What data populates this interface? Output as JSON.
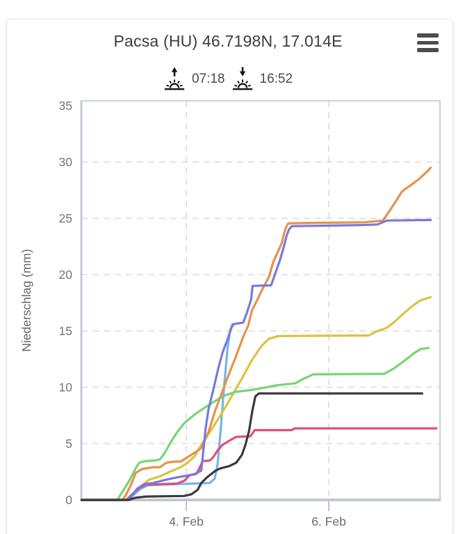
{
  "header": {
    "title": "Pacsa (HU) 46.7198N, 17.014E",
    "menu_icon": "hamburger-icon"
  },
  "sun": {
    "sunrise_icon": "sunrise-icon",
    "sunrise_time": "07:18",
    "sunset_icon": "sunset-icon",
    "sunset_time": "16:52"
  },
  "colors": {
    "title_text": "#3c3c3c",
    "sun_text": "#4a4a4a",
    "menu_icon": "#4c4c4c",
    "grid": "#dbdbdb",
    "axis_border": "#d0d4dd",
    "axis_main": "#c3c8d4",
    "tick_mark": "#b9c4da",
    "tick_text": "#757575",
    "x_label_text": "#6d6d6d",
    "axis_title_text": "#666666"
  },
  "chart_data": {
    "type": "line",
    "title": "Pacsa (HU) 46.7198N, 17.014E",
    "xlabel": "",
    "ylabel": "Niederschlag (mm)",
    "ylim": [
      0,
      35
    ],
    "x_range_feb_days": [
      2.53,
      7.56
    ],
    "y_ticks": [
      0,
      5,
      10,
      15,
      20,
      25,
      30,
      35
    ],
    "y_gridlines": [
      5,
      10,
      15,
      20,
      25,
      30
    ],
    "x_ticks": [
      {
        "t": 4,
        "label": "4. Feb"
      },
      {
        "t": 6,
        "label": "6. Feb"
      }
    ],
    "grid": "dashed",
    "legend_position": "none",
    "series": [
      {
        "name": "model-lightblue",
        "color": "#74b5e8",
        "points": [
          [
            2.53,
            0
          ],
          [
            3.19,
            0
          ],
          [
            3.27,
            0.5
          ],
          [
            3.36,
            1.0
          ],
          [
            3.46,
            1.3
          ],
          [
            3.63,
            1.35
          ],
          [
            4.33,
            1.5
          ],
          [
            4.4,
            1.9
          ],
          [
            4.44,
            3.2
          ],
          [
            4.48,
            6.0
          ],
          [
            4.53,
            10.0
          ],
          [
            4.58,
            13.5
          ],
          [
            4.62,
            15.2
          ],
          [
            4.67,
            15.6
          ]
        ]
      },
      {
        "name": "model-yellow",
        "color": "#dcc23f",
        "points": [
          [
            2.53,
            0
          ],
          [
            3.16,
            0
          ],
          [
            3.24,
            0.5
          ],
          [
            3.34,
            1.1
          ],
          [
            3.48,
            1.8
          ],
          [
            3.63,
            2.1
          ],
          [
            3.77,
            2.5
          ],
          [
            3.92,
            2.9
          ],
          [
            4.02,
            3.3
          ],
          [
            4.12,
            3.9
          ],
          [
            4.22,
            5.0
          ],
          [
            4.36,
            6.3
          ],
          [
            4.48,
            7.5
          ],
          [
            4.6,
            8.8
          ],
          [
            4.7,
            9.9
          ],
          [
            4.8,
            11.0
          ],
          [
            4.92,
            12.4
          ],
          [
            5.06,
            13.7
          ],
          [
            5.16,
            14.3
          ],
          [
            5.29,
            14.55
          ],
          [
            6.56,
            14.6
          ],
          [
            6.65,
            14.9
          ],
          [
            6.82,
            15.3
          ],
          [
            6.92,
            15.8
          ],
          [
            7.04,
            16.5
          ],
          [
            7.17,
            17.2
          ],
          [
            7.28,
            17.7
          ],
          [
            7.43,
            18.0
          ]
        ]
      },
      {
        "name": "model-green",
        "color": "#77d474",
        "points": [
          [
            2.53,
            0
          ],
          [
            3.03,
            0
          ],
          [
            3.1,
            0.7
          ],
          [
            3.19,
            1.6
          ],
          [
            3.29,
            2.8
          ],
          [
            3.34,
            3.3
          ],
          [
            3.43,
            3.45
          ],
          [
            3.56,
            3.5
          ],
          [
            3.63,
            3.6
          ],
          [
            3.7,
            4.2
          ],
          [
            3.77,
            5.0
          ],
          [
            3.87,
            6.0
          ],
          [
            3.97,
            6.8
          ],
          [
            4.12,
            7.6
          ],
          [
            4.26,
            8.2
          ],
          [
            4.41,
            8.8
          ],
          [
            4.55,
            9.3
          ],
          [
            4.7,
            9.6
          ],
          [
            4.9,
            9.75
          ],
          [
            5.04,
            9.9
          ],
          [
            5.29,
            10.2
          ],
          [
            5.53,
            10.35
          ],
          [
            5.66,
            10.8
          ],
          [
            5.78,
            11.15
          ],
          [
            6.78,
            11.2
          ],
          [
            6.92,
            11.7
          ],
          [
            7.07,
            12.4
          ],
          [
            7.19,
            13.0
          ],
          [
            7.29,
            13.4
          ],
          [
            7.4,
            13.5
          ]
        ]
      },
      {
        "name": "model-orange",
        "color": "#e5924a",
        "points": [
          [
            2.53,
            0
          ],
          [
            3.1,
            0
          ],
          [
            3.14,
            0.3
          ],
          [
            3.22,
            1.3
          ],
          [
            3.29,
            2.4
          ],
          [
            3.38,
            2.75
          ],
          [
            3.53,
            2.9
          ],
          [
            3.63,
            2.9
          ],
          [
            3.72,
            3.3
          ],
          [
            3.82,
            3.4
          ],
          [
            3.92,
            3.4
          ],
          [
            4.02,
            3.8
          ],
          [
            4.12,
            4.2
          ],
          [
            4.21,
            4.6
          ],
          [
            4.31,
            6.0
          ],
          [
            4.41,
            8.0
          ],
          [
            4.51,
            9.7
          ],
          [
            4.6,
            11.2
          ],
          [
            4.7,
            12.8
          ],
          [
            4.8,
            14.5
          ],
          [
            4.87,
            15.5
          ],
          [
            4.92,
            16.8
          ],
          [
            5.0,
            17.8
          ],
          [
            5.06,
            18.6
          ],
          [
            5.16,
            19.8
          ],
          [
            5.22,
            21.1
          ],
          [
            5.29,
            22.1
          ],
          [
            5.34,
            22.8
          ],
          [
            5.37,
            23.6
          ],
          [
            5.4,
            24.2
          ],
          [
            5.43,
            24.55
          ],
          [
            5.8,
            24.6
          ],
          [
            6.5,
            24.65
          ],
          [
            6.76,
            24.8
          ],
          [
            6.92,
            26.3
          ],
          [
            7.02,
            27.3
          ],
          [
            7.06,
            27.55
          ],
          [
            7.13,
            27.85
          ],
          [
            7.27,
            28.5
          ],
          [
            7.37,
            29.1
          ],
          [
            7.43,
            29.5
          ]
        ]
      },
      {
        "name": "model-pink",
        "color": "#e14f76",
        "points": [
          [
            2.53,
            0
          ],
          [
            3.16,
            0
          ],
          [
            3.24,
            0.5
          ],
          [
            3.34,
            1.05
          ],
          [
            3.43,
            1.35
          ],
          [
            3.87,
            1.45
          ],
          [
            3.97,
            1.7
          ],
          [
            4.05,
            2.2
          ],
          [
            4.14,
            2.3
          ],
          [
            4.19,
            2.9
          ],
          [
            4.23,
            3.45
          ],
          [
            4.33,
            3.5
          ],
          [
            4.38,
            3.8
          ],
          [
            4.44,
            4.4
          ],
          [
            4.51,
            4.9
          ],
          [
            4.63,
            5.35
          ],
          [
            4.7,
            5.6
          ],
          [
            4.9,
            5.65
          ],
          [
            4.96,
            6.2
          ],
          [
            5.48,
            6.2
          ],
          [
            5.52,
            6.35
          ],
          [
            7.51,
            6.35
          ]
        ]
      },
      {
        "name": "model-blue",
        "color": "#767add",
        "points": [
          [
            2.53,
            0
          ],
          [
            3.18,
            0
          ],
          [
            3.24,
            0.4
          ],
          [
            3.31,
            1.0
          ],
          [
            3.41,
            1.4
          ],
          [
            3.53,
            1.5
          ],
          [
            3.72,
            1.8
          ],
          [
            3.87,
            2.0
          ],
          [
            4.04,
            2.2
          ],
          [
            4.12,
            2.3
          ],
          [
            4.21,
            2.6
          ],
          [
            4.24,
            4.4
          ],
          [
            4.27,
            6.3
          ],
          [
            4.31,
            8.0
          ],
          [
            4.38,
            9.8
          ],
          [
            4.45,
            11.7
          ],
          [
            4.51,
            13.1
          ],
          [
            4.57,
            14.1
          ],
          [
            4.65,
            15.6
          ],
          [
            4.8,
            15.75
          ],
          [
            4.85,
            16.6
          ],
          [
            4.91,
            17.8
          ],
          [
            4.93,
            19.0
          ],
          [
            5.19,
            19.05
          ],
          [
            5.26,
            20.3
          ],
          [
            5.32,
            21.4
          ],
          [
            5.37,
            22.5
          ],
          [
            5.41,
            23.5
          ],
          [
            5.44,
            24.0
          ],
          [
            5.48,
            24.3
          ],
          [
            6.45,
            24.4
          ],
          [
            6.68,
            24.45
          ],
          [
            6.82,
            24.8
          ],
          [
            7.43,
            24.85
          ]
        ]
      },
      {
        "name": "model-black",
        "color": "#3b3b3b",
        "points": [
          [
            2.53,
            0
          ],
          [
            3.19,
            0
          ],
          [
            3.29,
            0.2
          ],
          [
            3.43,
            0.3
          ],
          [
            3.97,
            0.35
          ],
          [
            4.07,
            0.5
          ],
          [
            4.16,
            0.9
          ],
          [
            4.21,
            1.5
          ],
          [
            4.29,
            2.0
          ],
          [
            4.41,
            2.6
          ],
          [
            4.48,
            2.8
          ],
          [
            4.6,
            3.0
          ],
          [
            4.7,
            3.3
          ],
          [
            4.78,
            4.0
          ],
          [
            4.83,
            4.9
          ],
          [
            4.88,
            6.1
          ],
          [
            4.93,
            8.0
          ],
          [
            4.97,
            9.2
          ],
          [
            5.02,
            9.45
          ],
          [
            7.31,
            9.45
          ]
        ]
      }
    ]
  }
}
